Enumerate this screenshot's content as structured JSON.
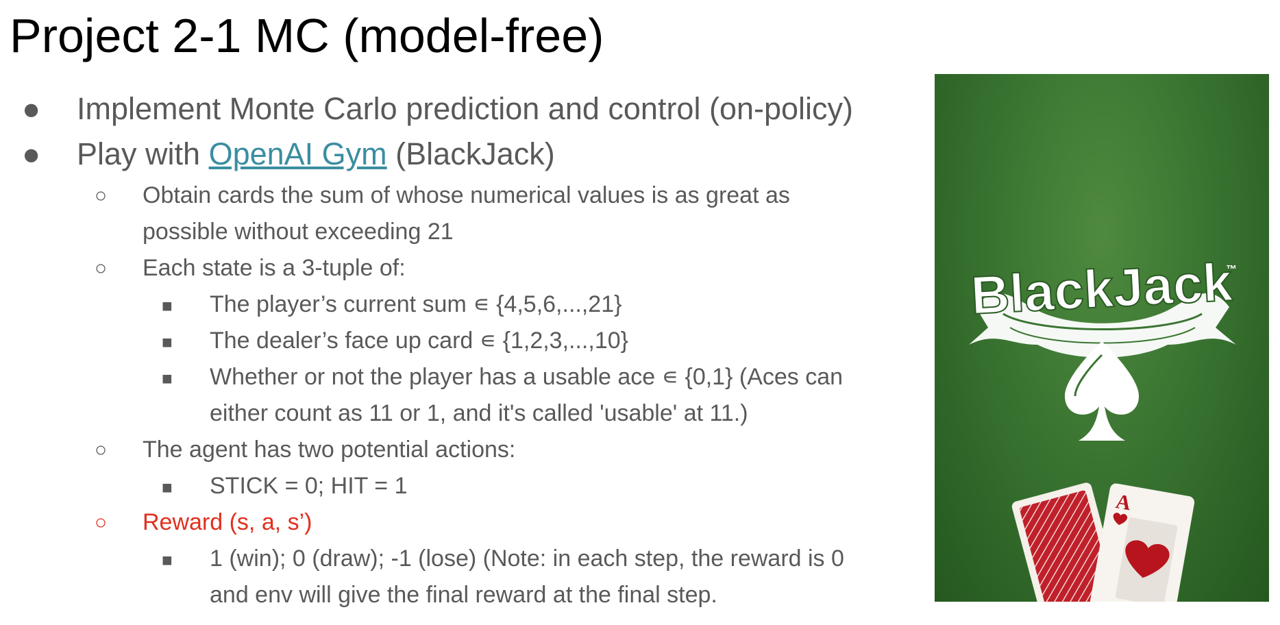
{
  "title": "Project 2-1 MC (model-free)",
  "bullets": {
    "b1": "Implement Monte Carlo prediction and control (on-policy)",
    "b2_prefix": "Play with ",
    "b2_link": "OpenAI Gym",
    "b2_suffix": " (BlackJack)",
    "sub1_line1": "Obtain cards the sum of whose numerical values is as great as",
    "sub1_line2": "possible without exceeding 21",
    "sub2": "Each state is a 3-tuple of:",
    "sub2_items": [
      "The player’s current sum ∊ {4,5,6,...,21}",
      "The dealer’s face up card ∊ {1,2,3,...,10}",
      "Whether or not the player has a usable ace ∊ {0,1} (Aces can",
      "either count as 11 or 1, and it's called 'usable' at 11.)"
    ],
    "sub3": "The agent has two potential actions:",
    "sub3_items": [
      "STICK = 0; HIT = 1"
    ],
    "sub4": "Reward (s, a, s’)",
    "sub4_items": [
      "1 (win); 0 (draw); -1 (lose) (Note: in each step, the reward is 0",
      "and env will give the final reward at the final step."
    ]
  },
  "glyphs": {
    "bullet_l1": "●",
    "bullet_l2": "○",
    "bullet_l3": "■"
  },
  "image": {
    "logo_text": "BlackJack",
    "trademark": "™",
    "card_rank": "A",
    "colors": {
      "felt": "#3a7431",
      "card_back": "#c0202a",
      "heart": "#b8141e"
    }
  }
}
